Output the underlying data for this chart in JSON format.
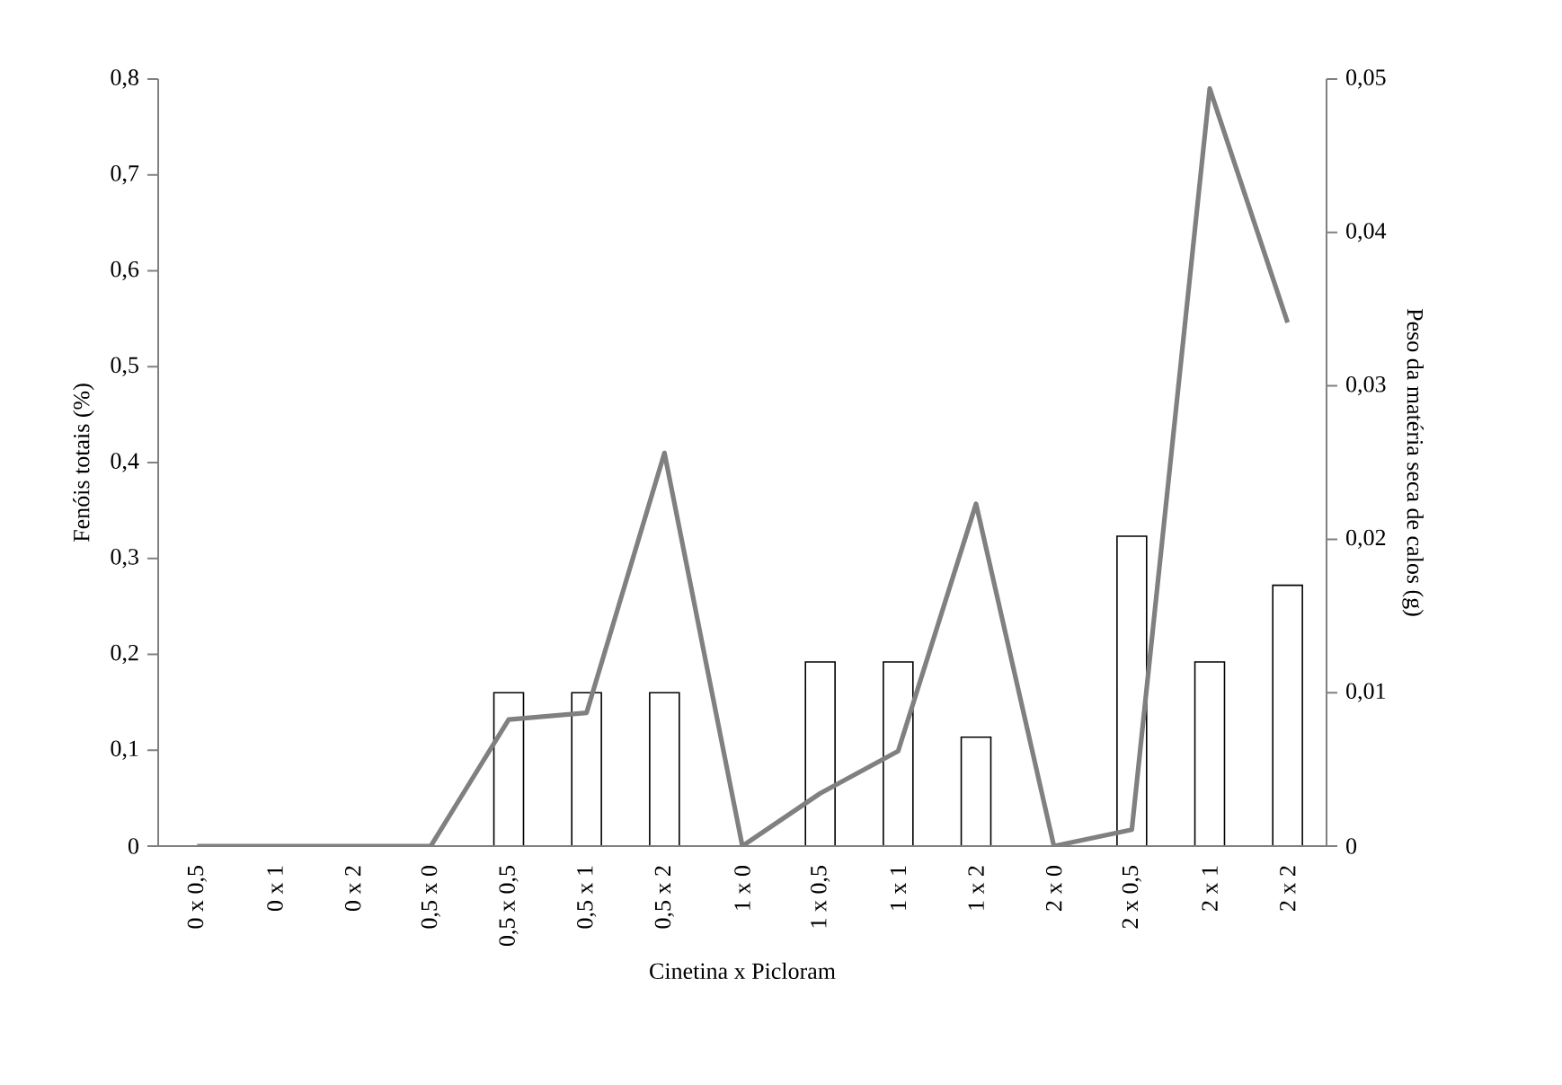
{
  "chart_data": {
    "type": "bar",
    "xlabel": "Cinetina x Picloram",
    "ylabel": "Fenóis totais (%)",
    "y2label": "Peso da matéria seca de calos (g)",
    "categories": [
      "0 x 0,5",
      "0 x 1",
      "0 x 2",
      "0,5 x 0",
      "0,5 x 0,5",
      "0,5 x 1",
      "0,5 x 2",
      "1 x 0",
      "1 x 0,5",
      "1 x 1",
      "1 x 2",
      "2 x 0",
      "2 x 0,5",
      "2 x 1",
      "2 x 2"
    ],
    "series": [
      {
        "axis": "y2",
        "color": "#ffffff",
        "values": [
          0,
          0,
          0,
          0,
          0.01,
          0.01,
          0.01,
          0,
          0.012,
          0.012,
          0.0071,
          0,
          0.0202,
          0.012,
          0.017
        ]
      },
      {
        "type": "line",
        "color": "#808080",
        "values": [
          0,
          0,
          0,
          0,
          0.132,
          0.139,
          0.41,
          0,
          0.055,
          0.099,
          0.357,
          0,
          0.017,
          0.79,
          0.546
        ]
      }
    ],
    "ylim": [
      0,
      0.8
    ],
    "yticks": [
      0,
      {
        "value": 0.1,
        "label": "0,1"
      },
      {
        "value": 0.2,
        "label": "0,2"
      },
      {
        "value": 0.3,
        "label": "0,3"
      },
      {
        "value": 0.4,
        "label": "0,4"
      },
      {
        "value": 0.5,
        "label": "0,5"
      },
      {
        "value": 0.6,
        "label": "0,6"
      },
      {
        "value": 0.7,
        "label": "0,7"
      },
      {
        "value": 0.8,
        "label": "0,8"
      }
    ],
    "y2lim": [
      0,
      0.05
    ],
    "y2ticks": [
      0,
      {
        "value": 0.01,
        "label": "0,01"
      },
      {
        "value": 0.02,
        "label": "0,02"
      },
      {
        "value": 0.03,
        "label": "0,03"
      },
      {
        "value": 0.04,
        "label": "0,04"
      },
      {
        "value": 0.05,
        "label": "0,05"
      }
    ],
    "grid": false,
    "marker": "none",
    "line_style": "solid"
  }
}
